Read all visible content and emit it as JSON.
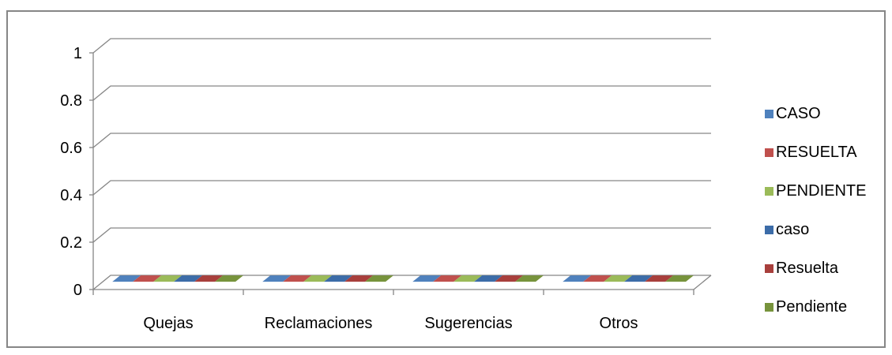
{
  "chart_data": {
    "type": "bar",
    "categories": [
      "Quejas",
      "Reclamaciones",
      "Sugerencias",
      "Otros"
    ],
    "series": [
      {
        "name": "CASO",
        "values": [
          0,
          0,
          0,
          0
        ],
        "color": "#4F81BD"
      },
      {
        "name": "RESUELTA",
        "values": [
          0,
          0,
          0,
          0
        ],
        "color": "#C0504D"
      },
      {
        "name": "PENDIENTE",
        "values": [
          0,
          0,
          0,
          0
        ],
        "color": "#9BBB59"
      },
      {
        "name": "caso",
        "values": [
          0,
          0,
          0,
          0
        ],
        "color": "#3C6CA8"
      },
      {
        "name": "Resuelta",
        "values": [
          0,
          0,
          0,
          0
        ],
        "color": "#A83F3C"
      },
      {
        "name": "Pendiente",
        "values": [
          0,
          0,
          0,
          0
        ],
        "color": "#77933C"
      }
    ],
    "yticks": [
      "0",
      "0.2",
      "0.4",
      "0.6",
      "0.8",
      "1"
    ],
    "ylim": [
      0,
      1
    ],
    "grid": true,
    "legend": "right",
    "style": "3d-clustered-column"
  }
}
